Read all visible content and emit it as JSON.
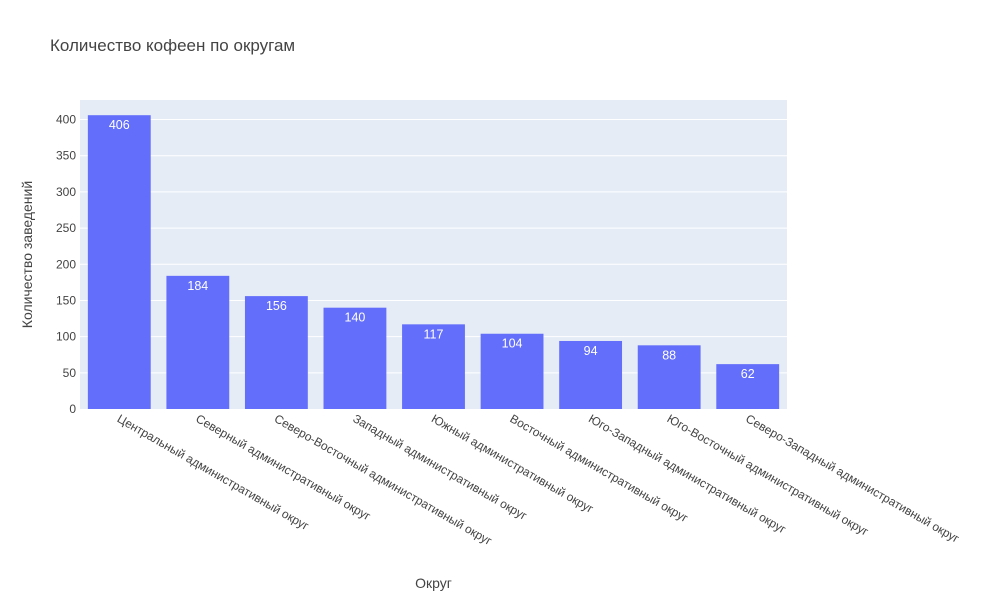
{
  "chart_data": {
    "type": "bar",
    "title": "Количество кофеен по округам",
    "xlabel": "Округ",
    "ylabel": "Количество заведений",
    "categories": [
      "Центральный административный округ",
      "Северный административный округ",
      "Северо-Восточный административный округ",
      "Западный административный округ",
      "Южный административный округ",
      "Восточный административный округ",
      "Юго-Западный административный округ",
      "Юго-Восточный административный округ",
      "Северо-Западный административный округ"
    ],
    "values": [
      406,
      184,
      156,
      140,
      117,
      104,
      94,
      88,
      62
    ],
    "ylim": [
      0,
      427
    ],
    "yticks": [
      0,
      50,
      100,
      150,
      200,
      250,
      300,
      350,
      400
    ],
    "grid": true,
    "bar_color": "#636efa",
    "plot_bg": "#e5ecf6",
    "grid_color": "#ffffff"
  }
}
